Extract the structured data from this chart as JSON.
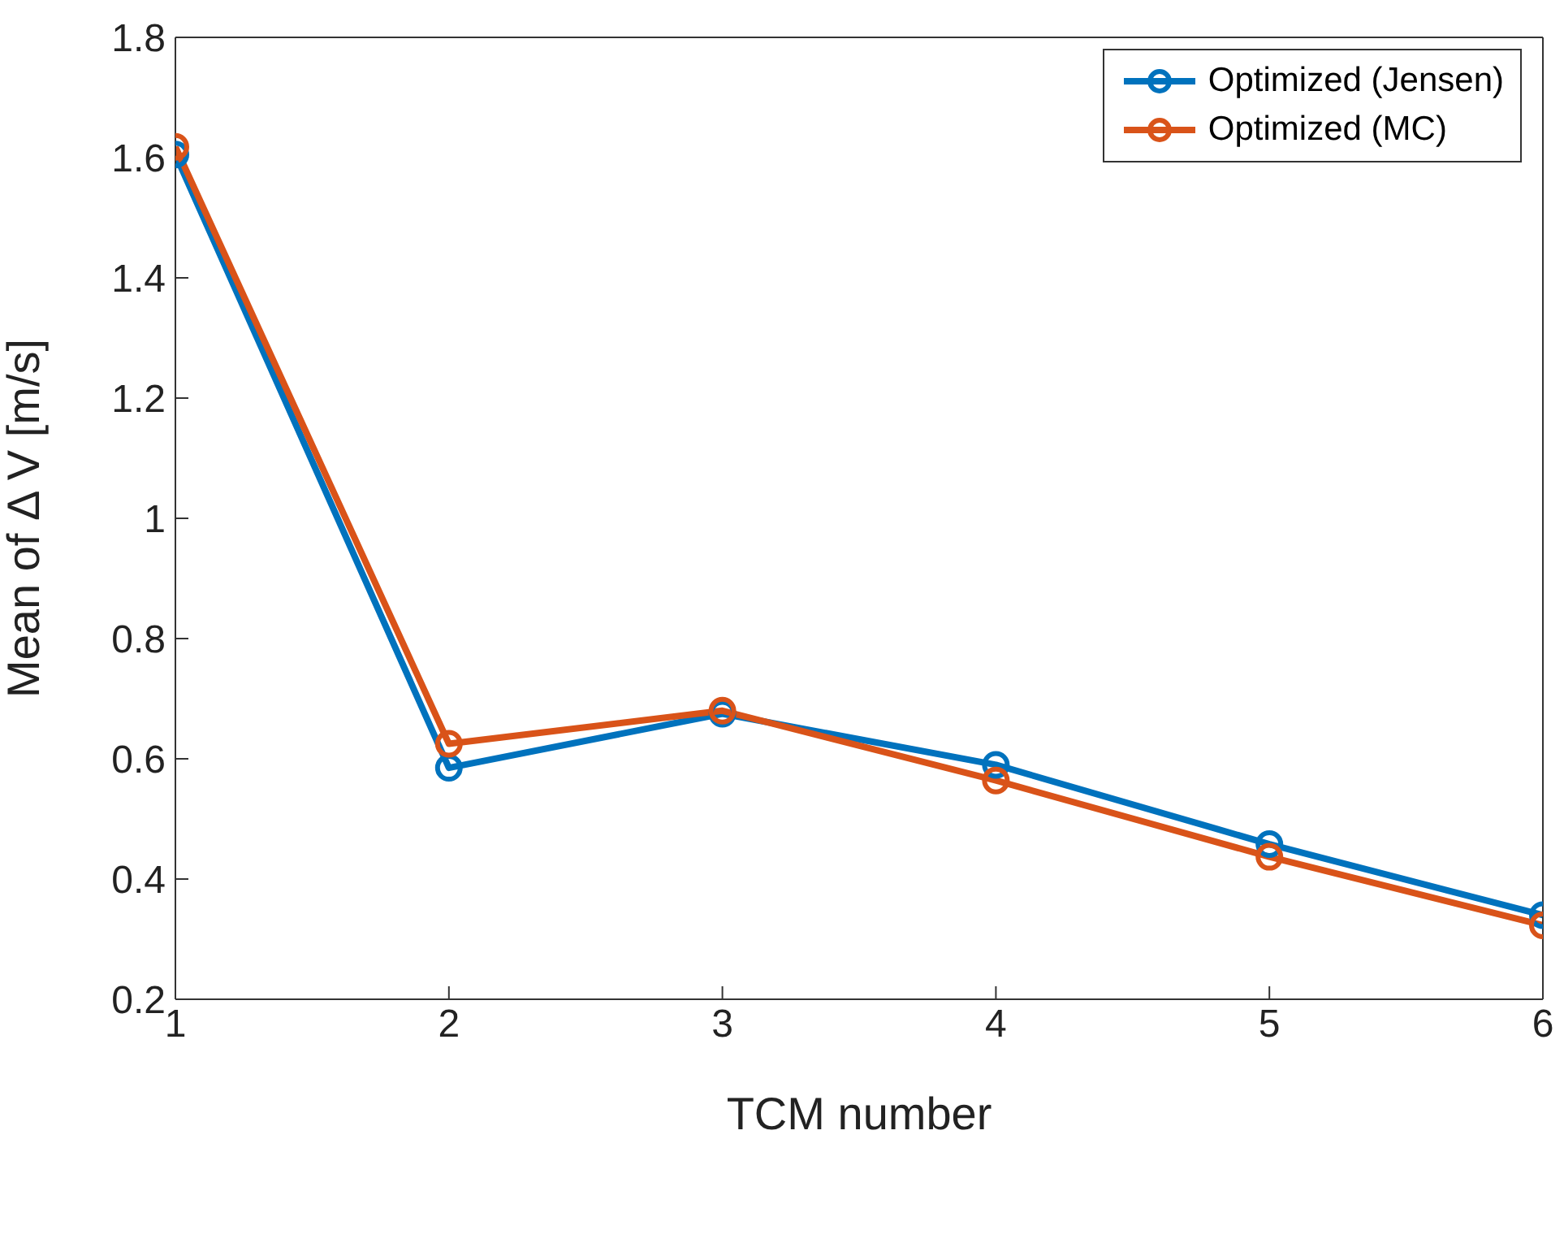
{
  "chart_data": {
    "type": "line",
    "xlabel": "TCM number",
    "ylabel": "Mean of Δ V [m/s]",
    "x": [
      1,
      2,
      3,
      4,
      5,
      6
    ],
    "series": [
      {
        "name": "Optimized (Jensen)",
        "color": "#0072bd",
        "values": [
          1.605,
          0.585,
          0.675,
          0.59,
          0.458,
          0.34
        ]
      },
      {
        "name": "Optimized (MC)",
        "color": "#d95319",
        "values": [
          1.618,
          0.625,
          0.68,
          0.564,
          0.437,
          0.323
        ]
      }
    ],
    "xlim": [
      1,
      6
    ],
    "xticks": [
      1,
      2,
      3,
      4,
      5,
      6
    ],
    "ylim": [
      0.2,
      1.8
    ],
    "yticks": [
      0.2,
      0.4,
      0.6,
      0.8,
      1,
      1.2,
      1.4,
      1.6,
      1.8
    ],
    "grid": false,
    "legend": "top right",
    "marker": "circle",
    "line_style": "solid"
  }
}
